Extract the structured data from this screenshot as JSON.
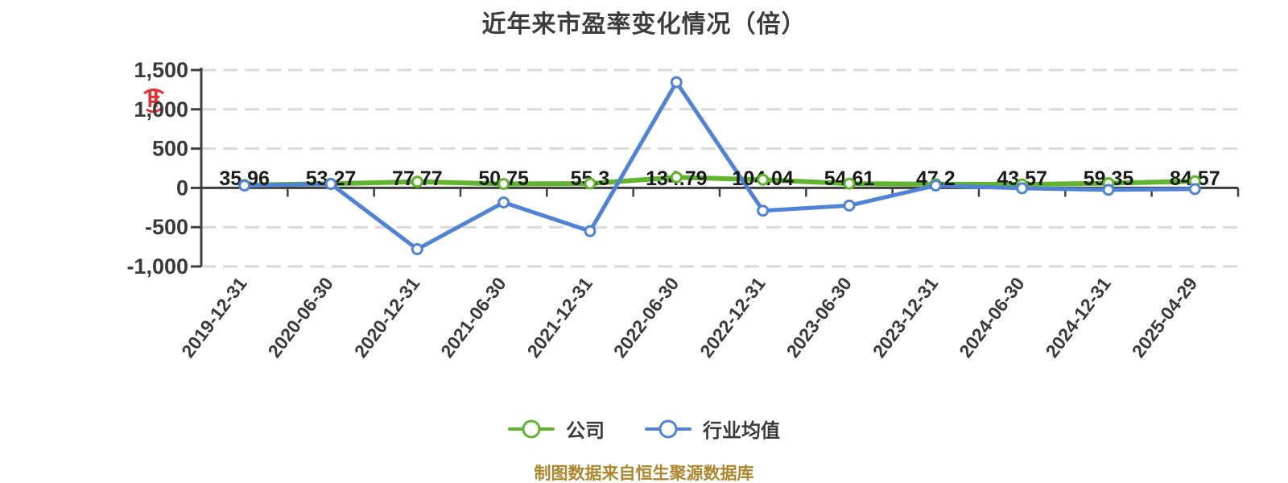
{
  "title": "近年来市盈率变化情况（倍）",
  "chart_data": {
    "type": "line",
    "title": "近年来市盈率变化情况（倍）",
    "categories": [
      "2019-12-31",
      "2020-06-30",
      "2020-12-31",
      "2021-06-30",
      "2021-12-31",
      "2022-06-30",
      "2022-12-31",
      "2023-06-30",
      "2023-12-31",
      "2024-06-30",
      "2024-12-31",
      "2025-04-29"
    ],
    "series": [
      {
        "name": "公司",
        "color": "#61b42e",
        "data_labels": true,
        "values": [
          35.96,
          53.27,
          77.77,
          50.75,
          55.3,
          134.79,
          104.04,
          54.61,
          47.2,
          43.57,
          59.35,
          84.57
        ]
      },
      {
        "name": "行业均值",
        "color": "#5083d6",
        "data_labels": false,
        "values": [
          30,
          50,
          -780,
          -185,
          -550,
          1345,
          -290,
          -225,
          30,
          -5,
          -25,
          -15
        ]
      }
    ],
    "ylim": [
      -1000,
      1500
    ],
    "y_ticks": [
      1500,
      1000,
      500,
      0,
      -500,
      -1000
    ],
    "y_tick_labels": [
      "1,500",
      "1,000",
      "500",
      "0",
      "-500",
      "-1,000"
    ],
    "grid": "horizontal dashed",
    "legend_position": "bottom",
    "x_label_rotation": -53
  },
  "legend": {
    "items": [
      {
        "label": "公司",
        "color": "#61b42e"
      },
      {
        "label": "行业均值",
        "color": "#5083d6"
      }
    ]
  },
  "footer": {
    "text": "制图数据来自恒生聚源数据库",
    "color": "#ad872d"
  },
  "style_colors": {
    "axis": "#3f3f3f",
    "grid_line": "#d9d9d9",
    "data_label": "#1a1a1a",
    "tick_text": "#3a3a3a",
    "seal": "#e02121"
  }
}
